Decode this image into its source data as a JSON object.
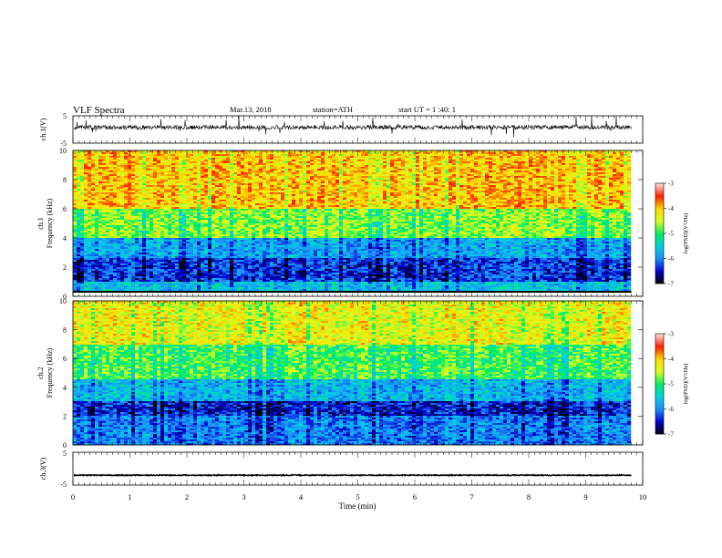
{
  "header": {
    "title": "VLF  Spectra",
    "date": "Mar.13, 2018",
    "station": "station=ATH",
    "start_ut": "start  UT  =   1  :40: 1"
  },
  "chart_data": [
    {
      "type": "line",
      "panel": "ch1-waveform",
      "ylabel": "ch.1(V)",
      "ylim": [
        -5,
        5
      ],
      "yticks": [
        "5",
        "-5"
      ],
      "xlim": [
        0,
        10
      ],
      "data_extent_min": 9.8,
      "series": [
        {
          "color": "#000000",
          "baseline_v": 0.8,
          "noise_amplitude_v": 1.6
        }
      ]
    },
    {
      "type": "heatmap",
      "panel": "ch1-spectrogram",
      "ylabel": [
        "ch.1",
        "Frequency  (kHz)"
      ],
      "ylim": [
        0,
        10
      ],
      "yticks": [
        "0",
        "2",
        "4",
        "6",
        "8",
        "10"
      ],
      "xlim": [
        0,
        10
      ],
      "data_extent_min": 9.8,
      "bands_khz": [
        {
          "from": 0.0,
          "to": 0.4,
          "level": "gap"
        },
        {
          "from": 0.4,
          "to": 1.0,
          "log_psd": -5.6
        },
        {
          "from": 1.0,
          "to": 2.6,
          "log_psd": -6.3
        },
        {
          "from": 2.6,
          "to": 4.0,
          "log_psd": -5.8
        },
        {
          "from": 4.0,
          "to": 6.0,
          "log_psd": -4.7
        },
        {
          "from": 6.0,
          "to": 10.0,
          "log_psd": -4.0
        }
      ],
      "colorbar": {
        "label": "log(PSD)(V²/Hz)",
        "ticks": [
          "-3",
          "-4",
          "-5",
          "-6",
          "-7"
        ],
        "range": [
          -7,
          -3
        ]
      }
    },
    {
      "type": "heatmap",
      "panel": "ch2-spectrogram",
      "ylabel": [
        "ch.2",
        "Frequency  (kHz)"
      ],
      "ylim": [
        0,
        10
      ],
      "yticks": [
        "0",
        "2",
        "4",
        "6",
        "8",
        "10"
      ],
      "xlim": [
        0,
        10
      ],
      "data_extent_min": 9.8,
      "bands_khz": [
        {
          "from": 0.0,
          "to": 2.0,
          "log_psd": -6.0
        },
        {
          "from": 2.0,
          "to": 3.0,
          "log_psd": -6.4
        },
        {
          "from": 3.0,
          "to": 4.5,
          "log_psd": -5.7
        },
        {
          "from": 4.5,
          "to": 7.0,
          "log_psd": -4.9
        },
        {
          "from": 7.0,
          "to": 10.0,
          "log_psd": -4.3
        }
      ],
      "colorbar": {
        "label": "log(PSD)(V²/Hz)",
        "ticks": [
          "-3",
          "-4",
          "-5",
          "-6",
          "-7"
        ],
        "range": [
          -7,
          -3
        ]
      }
    },
    {
      "type": "line",
      "panel": "ch3-waveform",
      "ylabel": "ch.3(V)",
      "ylim": [
        -5,
        5
      ],
      "yticks": [
        "5",
        "-5"
      ],
      "xlim": [
        0,
        10
      ],
      "xlabel": "Time  (min)",
      "xticks": [
        "0",
        "1",
        "2",
        "3",
        "4",
        "5",
        "6",
        "7",
        "8",
        "9",
        "10"
      ],
      "data_extent_min": 9.8,
      "series": [
        {
          "color": "#000000",
          "baseline_v": -2.0,
          "noise_amplitude_v": 0.3
        }
      ]
    }
  ],
  "colorscale": [
    "#000000",
    "#0000cc",
    "#1d8cff",
    "#00d0e0",
    "#00ee60",
    "#d8ff20",
    "#ffd800",
    "#ff2000",
    "#ffe0e0"
  ]
}
